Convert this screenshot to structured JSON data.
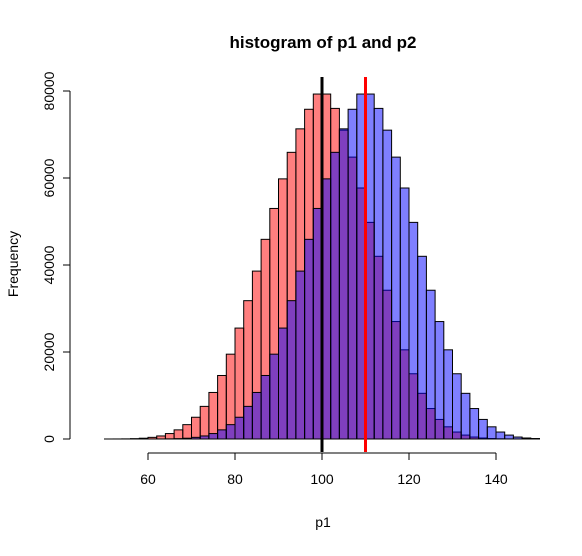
{
  "chart_data": {
    "type": "histogram",
    "title": "histogram of p1 and p2",
    "xlabel": "p1",
    "ylabel": "Frequency",
    "xlim": [
      47,
      150
    ],
    "ylim": [
      0,
      80000
    ],
    "x_ticks": [
      60,
      80,
      100,
      120,
      140
    ],
    "y_ticks": [
      0,
      20000,
      40000,
      60000,
      80000
    ],
    "y_tick_labels": [
      "0",
      "20000",
      "40000",
      "60000",
      "80000"
    ],
    "bin_width": 2,
    "grid": false,
    "legend": "none",
    "colors": {
      "series_a": "rgba(255,0,0,0.5)",
      "series_b": "rgba(0,0,255,0.5)",
      "bar_border": "#000000",
      "vline_a": "#000000",
      "vline_b": "#ff0000"
    },
    "series": [
      {
        "bins_start": [
          50,
          52,
          54,
          56,
          58,
          60,
          62,
          64,
          66,
          68,
          70,
          72,
          74,
          76,
          78,
          80,
          82,
          84,
          86,
          88,
          90,
          92,
          94,
          96,
          98,
          100,
          102,
          104,
          106,
          108,
          110,
          112,
          114,
          116,
          118,
          120,
          122,
          124,
          126,
          128,
          130,
          132,
          134,
          136,
          138,
          140,
          142,
          144,
          146
        ],
        "counts": [
          3,
          10,
          30,
          80,
          180,
          380,
          700,
          1250,
          2100,
          3300,
          5000,
          7500,
          10700,
          14600,
          19500,
          25500,
          31800,
          38600,
          45900,
          53000,
          59800,
          65900,
          71300,
          75800,
          79300,
          79300,
          76000,
          71000,
          64800,
          57700,
          49800,
          42000,
          34200,
          27000,
          20500,
          15000,
          10500,
          7000,
          4500,
          2800,
          1600,
          900,
          450,
          230,
          110,
          50,
          20,
          8,
          3
        ]
      },
      {
        "bins_start": [
          60,
          62,
          64,
          66,
          68,
          70,
          72,
          74,
          76,
          78,
          80,
          82,
          84,
          86,
          88,
          90,
          92,
          94,
          96,
          98,
          100,
          102,
          104,
          106,
          108,
          110,
          112,
          114,
          116,
          118,
          120,
          122,
          124,
          126,
          128,
          130,
          132,
          134,
          136,
          138,
          140,
          142,
          144,
          146,
          148
        ],
        "counts": [
          3,
          10,
          30,
          80,
          180,
          380,
          700,
          1250,
          2100,
          3300,
          5000,
          7500,
          10700,
          14600,
          19500,
          25500,
          31800,
          38600,
          45900,
          53000,
          59800,
          65900,
          71300,
          75800,
          79300,
          79300,
          76000,
          71000,
          64800,
          57700,
          49800,
          42000,
          34200,
          27000,
          20500,
          15000,
          10500,
          7000,
          4500,
          2800,
          1600,
          900,
          450,
          230,
          110
        ]
      }
    ],
    "vlines": [
      {
        "x": 100,
        "color": "#000000"
      },
      {
        "x": 110,
        "color": "#ff0000"
      }
    ]
  }
}
